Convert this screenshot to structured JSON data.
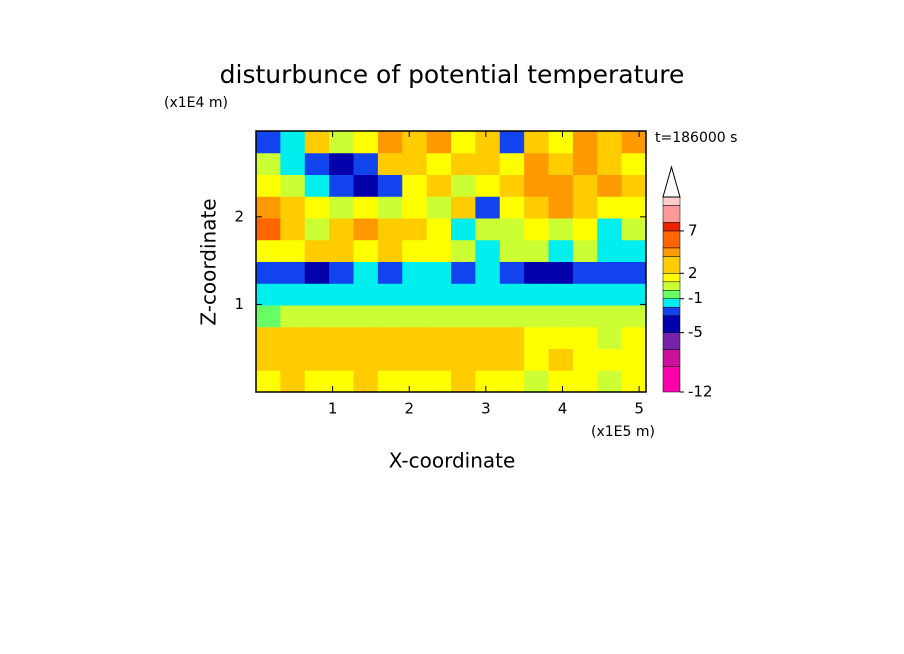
{
  "chart_data": {
    "type": "contour",
    "title": "disturbunce of potential temperature",
    "x_label": "X-coordinate",
    "y_label": "Z-coordinate",
    "x_unit": "(x1E5 m)",
    "y_unit": "(x1E4 m)",
    "annotation": "t=186000 s",
    "xlim": [
      0,
      5.09
    ],
    "ylim": [
      0,
      2.98
    ],
    "xticks": [
      1,
      2,
      3,
      4,
      5
    ],
    "yticks": [
      1,
      2
    ],
    "z": [
      [
        1,
        2,
        1,
        1,
        2,
        1,
        1,
        1,
        2,
        1,
        1,
        0,
        1,
        1,
        0,
        1
      ],
      [
        3,
        3,
        3,
        3,
        3,
        3,
        3,
        3,
        3,
        3,
        3,
        1,
        2,
        1,
        1,
        1
      ],
      [
        2,
        3,
        3,
        3,
        2,
        2,
        2,
        2,
        3,
        2,
        2,
        1,
        1,
        1,
        0,
        1
      ],
      [
        -1,
        0,
        0,
        0,
        0,
        0,
        0,
        0,
        0,
        0,
        0,
        0,
        0,
        0,
        0,
        0
      ],
      [
        -1.5,
        -1.5,
        -1.5,
        -1.5,
        -1.5,
        -1.5,
        -1.5,
        -1.5,
        -1.5,
        -1.5,
        -1.5,
        -1.5,
        -1.5,
        -1.5,
        -1.5,
        -1.5
      ],
      [
        -2.5,
        -2.5,
        -3.5,
        -2.5,
        -1.5,
        -2.5,
        -1.5,
        -1.5,
        -2.5,
        -1.5,
        -2.5,
        -3.5,
        -4,
        -2.5,
        -2.5,
        -2.5
      ],
      [
        1.5,
        1.5,
        2.5,
        2.5,
        1.5,
        2.5,
        1.5,
        1.5,
        0.5,
        -1.5,
        0.5,
        0.5,
        -1.5,
        0.5,
        -1.5,
        -1.5
      ],
      [
        6,
        3,
        0.5,
        3,
        4.5,
        3,
        3,
        1.5,
        -1.5,
        0.5,
        0.5,
        1.5,
        0.5,
        1.5,
        -1.5,
        0.5
      ],
      [
        4.5,
        2.5,
        1.5,
        0.5,
        1.5,
        0.5,
        1.5,
        0.5,
        3,
        -2.5,
        1.5,
        3,
        4.5,
        3,
        1.5,
        1.5
      ],
      [
        1.5,
        0.5,
        -1.5,
        -3,
        -4,
        -3,
        1.5,
        3,
        0.5,
        1.5,
        3,
        4.5,
        4.5,
        3,
        4.5,
        3
      ],
      [
        0.5,
        -1.5,
        -2.5,
        -4,
        -2.5,
        3,
        3,
        1.5,
        3,
        3,
        1.5,
        4.5,
        3,
        4.5,
        3,
        1.5
      ],
      [
        -2.5,
        -1.5,
        3,
        0.5,
        1.5,
        4.5,
        3,
        4.5,
        1.5,
        3,
        -2.5,
        3,
        1.5,
        4.5,
        3,
        4.5
      ]
    ],
    "levels": [
      -12,
      -9,
      -7,
      -5,
      -3,
      -2,
      -1,
      0,
      1,
      2,
      4,
      5,
      7,
      8,
      10,
      11
    ],
    "colors": [
      "#ff00aa",
      "#cc1199",
      "#7722aa",
      "#0000aa",
      "#1144ee",
      "#00eeee",
      "#66ff66",
      "#ccff33",
      "#ffff00",
      "#ffcc00",
      "#ff9900",
      "#ff6600",
      "#ee2200",
      "#ff9999",
      "#ffcccc"
    ],
    "colorbar_ticks": [
      -12,
      -5,
      -1,
      2,
      7
    ]
  }
}
